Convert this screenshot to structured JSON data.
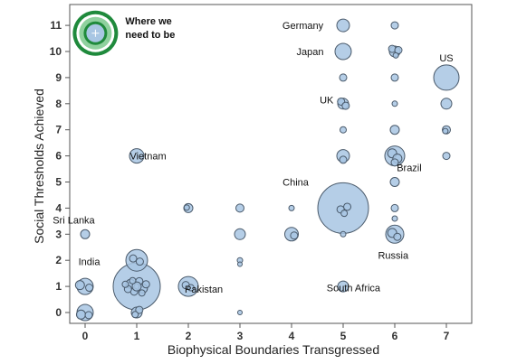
{
  "chart_data": {
    "type": "scatter",
    "xlabel": "Biophysical Boundaries Transgressed",
    "ylabel": "Social Thresholds Achieved",
    "xlim": [
      -0.3,
      7.5
    ],
    "ylim": [
      -0.4,
      11.5
    ],
    "x_ticks": [
      "0",
      "1",
      "2",
      "3",
      "4",
      "5",
      "6",
      "7"
    ],
    "y_ticks": [
      "0",
      "1",
      "2",
      "3",
      "4",
      "5",
      "6",
      "7",
      "8",
      "9",
      "10",
      "11"
    ],
    "grid": false,
    "colors": {
      "bubble_fill": "#a8c6e3",
      "bubble_stroke": "#4a5a6b",
      "target_dark": "#1f8a3c",
      "target_light": "#8fd19e",
      "frame": "#555555"
    },
    "target": {
      "x": 0.2,
      "y": 10.7,
      "label_lines": [
        "Where we",
        "need to be"
      ]
    },
    "labels": [
      {
        "text": "Germany",
        "x": 4.22,
        "y": 11.0
      },
      {
        "text": "Japan",
        "x": 4.36,
        "y": 10.0
      },
      {
        "text": "US",
        "x": 7.0,
        "y": 9.75
      },
      {
        "text": "UK",
        "x": 4.68,
        "y": 8.15
      },
      {
        "text": "Vietnam",
        "x": 1.22,
        "y": 6.0
      },
      {
        "text": "Brazil",
        "x": 6.28,
        "y": 5.55
      },
      {
        "text": "China",
        "x": 4.08,
        "y": 5.0
      },
      {
        "text": "Sri Lanka",
        "x": -0.22,
        "y": 3.55
      },
      {
        "text": "Russia",
        "x": 5.97,
        "y": 2.2
      },
      {
        "text": "India",
        "x": 0.08,
        "y": 1.95
      },
      {
        "text": "Pakistan",
        "x": 2.3,
        "y": 0.9
      },
      {
        "text": "South Africa",
        "x": 5.2,
        "y": 0.95
      }
    ],
    "points": [
      {
        "x": 0,
        "y": 0,
        "r": 9
      },
      {
        "x": -0.08,
        "y": -0.08,
        "r": 5
      },
      {
        "x": 0.07,
        "y": -0.1,
        "r": 4
      },
      {
        "x": 0,
        "y": 1,
        "r": 9
      },
      {
        "x": -0.1,
        "y": 1.05,
        "r": 5
      },
      {
        "x": 0.08,
        "y": 0.95,
        "r": 4
      },
      {
        "x": 0,
        "y": 3,
        "r": 5
      },
      {
        "x": 1,
        "y": 1,
        "r": 26
      },
      {
        "x": 0.88,
        "y": 1.1,
        "r": 5
      },
      {
        "x": 1.12,
        "y": 0.92,
        "r": 5
      },
      {
        "x": 0.95,
        "y": 0.8,
        "r": 4
      },
      {
        "x": 1.05,
        "y": 1.2,
        "r": 4
      },
      {
        "x": 0.83,
        "y": 0.9,
        "r": 4
      },
      {
        "x": 1.18,
        "y": 1.08,
        "r": 4
      },
      {
        "x": 1.0,
        "y": 1.0,
        "r": 5
      },
      {
        "x": 0.92,
        "y": 1.22,
        "r": 3.5
      },
      {
        "x": 1.1,
        "y": 0.75,
        "r": 3.5
      },
      {
        "x": 0.78,
        "y": 1.08,
        "r": 3.5
      },
      {
        "x": 1,
        "y": 2,
        "r": 12
      },
      {
        "x": 0.93,
        "y": 2.07,
        "r": 4
      },
      {
        "x": 1.06,
        "y": 1.95,
        "r": 4
      },
      {
        "x": 1,
        "y": 0,
        "r": 6
      },
      {
        "x": 1.05,
        "y": 0.1,
        "r": 4
      },
      {
        "x": 0.97,
        "y": -0.08,
        "r": 3.5
      },
      {
        "x": 1,
        "y": 6,
        "r": 8
      },
      {
        "x": 2,
        "y": 1,
        "r": 11
      },
      {
        "x": 1.95,
        "y": 1.05,
        "r": 4
      },
      {
        "x": 2.05,
        "y": 0.95,
        "r": 3.5
      },
      {
        "x": 2,
        "y": 4,
        "r": 5
      },
      {
        "x": 1.97,
        "y": 4.02,
        "r": 3
      },
      {
        "x": 3,
        "y": 4,
        "r": 4.5
      },
      {
        "x": 3,
        "y": 3,
        "r": 6
      },
      {
        "x": 3,
        "y": 2,
        "r": 3
      },
      {
        "x": 3,
        "y": 1.85,
        "r": 2.5
      },
      {
        "x": 3,
        "y": 0,
        "r": 2.5
      },
      {
        "x": 4,
        "y": 3,
        "r": 7.5
      },
      {
        "x": 4.05,
        "y": 2.95,
        "r": 4
      },
      {
        "x": 4,
        "y": 4,
        "r": 3
      },
      {
        "x": 5,
        "y": 4,
        "r": 28
      },
      {
        "x": 5.08,
        "y": 4.05,
        "r": 4
      },
      {
        "x": 4.95,
        "y": 3.95,
        "r": 4
      },
      {
        "x": 5.02,
        "y": 3.8,
        "r": 3.5
      },
      {
        "x": 5,
        "y": 11,
        "r": 7
      },
      {
        "x": 5,
        "y": 10,
        "r": 9
      },
      {
        "x": 5,
        "y": 9,
        "r": 4
      },
      {
        "x": 5,
        "y": 8,
        "r": 6
      },
      {
        "x": 4.96,
        "y": 8.08,
        "r": 4
      },
      {
        "x": 5.05,
        "y": 7.92,
        "r": 4
      },
      {
        "x": 5,
        "y": 7,
        "r": 3.5
      },
      {
        "x": 5,
        "y": 6,
        "r": 7
      },
      {
        "x": 5,
        "y": 5.85,
        "r": 4
      },
      {
        "x": 5,
        "y": 3,
        "r": 3
      },
      {
        "x": 5,
        "y": 1,
        "r": 6
      },
      {
        "x": 6,
        "y": 11,
        "r": 4
      },
      {
        "x": 6,
        "y": 10,
        "r": 6
      },
      {
        "x": 5.95,
        "y": 10.1,
        "r": 4
      },
      {
        "x": 6.07,
        "y": 10.05,
        "r": 4
      },
      {
        "x": 6.02,
        "y": 9.85,
        "r": 3
      },
      {
        "x": 6,
        "y": 9,
        "r": 4
      },
      {
        "x": 6,
        "y": 8,
        "r": 3
      },
      {
        "x": 6,
        "y": 7,
        "r": 5
      },
      {
        "x": 6,
        "y": 6,
        "r": 11
      },
      {
        "x": 5.95,
        "y": 6.1,
        "r": 5
      },
      {
        "x": 6.05,
        "y": 5.9,
        "r": 5
      },
      {
        "x": 6.0,
        "y": 5.75,
        "r": 4
      },
      {
        "x": 6,
        "y": 5,
        "r": 5
      },
      {
        "x": 6,
        "y": 4,
        "r": 4
      },
      {
        "x": 6,
        "y": 3.6,
        "r": 3
      },
      {
        "x": 6,
        "y": 3,
        "r": 10
      },
      {
        "x": 5.95,
        "y": 3.05,
        "r": 5
      },
      {
        "x": 6.05,
        "y": 2.9,
        "r": 4
      },
      {
        "x": 7,
        "y": 9,
        "r": 14
      },
      {
        "x": 7,
        "y": 8,
        "r": 6
      },
      {
        "x": 7,
        "y": 7,
        "r": 4.5
      },
      {
        "x": 6.98,
        "y": 6.95,
        "r": 3
      },
      {
        "x": 7,
        "y": 6,
        "r": 4
      }
    ]
  }
}
